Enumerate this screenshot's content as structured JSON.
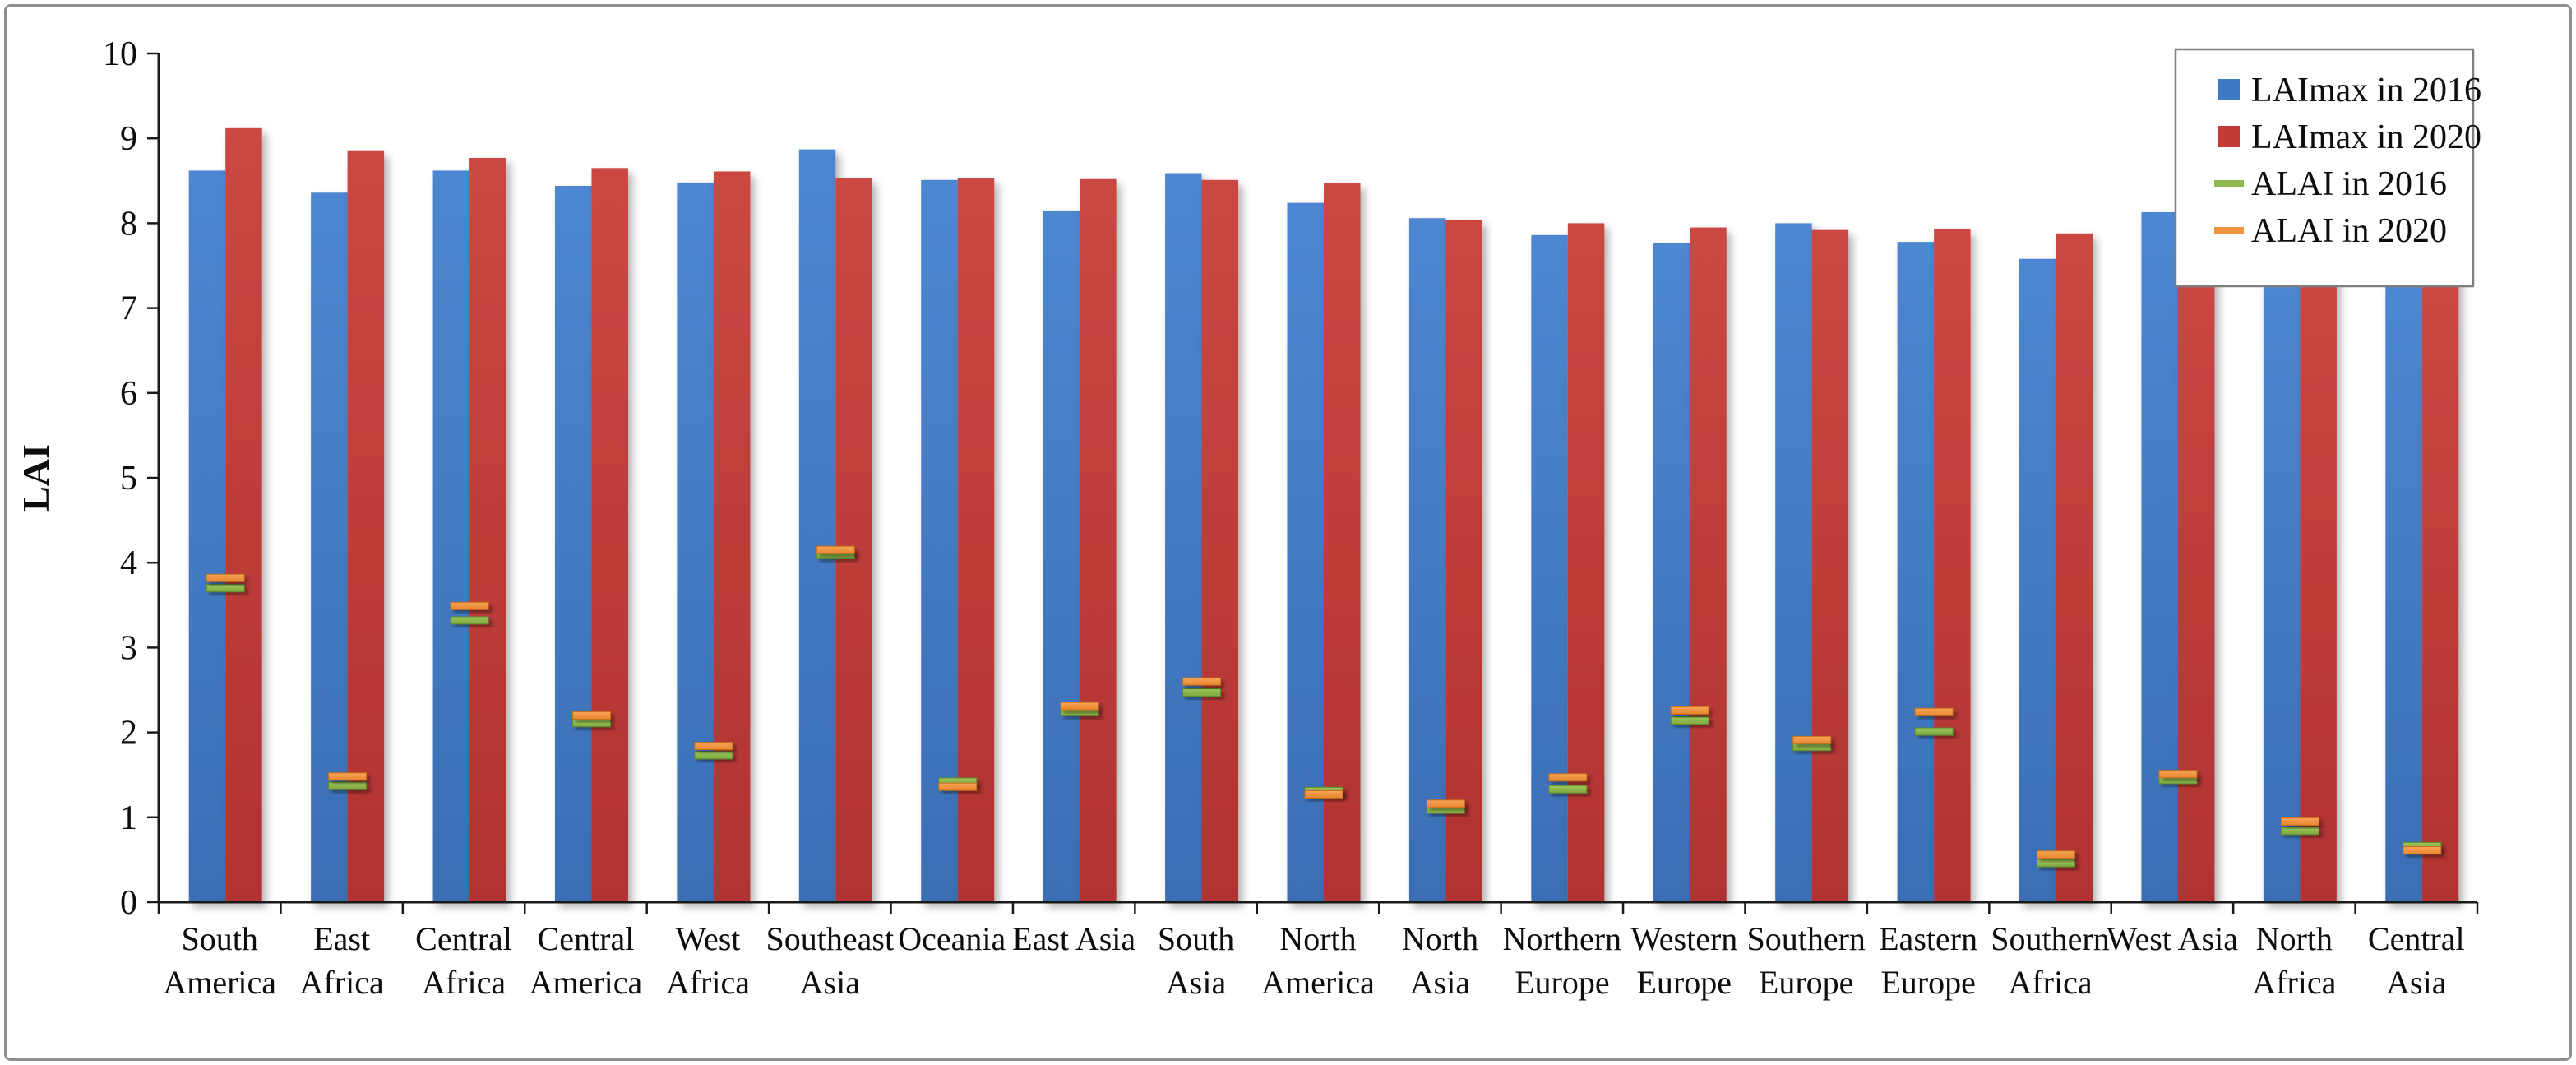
{
  "figure": {
    "kind": "excel-style clustered bar chart with dash markers",
    "background": "#ffffff",
    "frame_color": "#8f8f8f"
  },
  "chart_data": {
    "type": "bar",
    "title": "",
    "xlabel": "",
    "ylabel": "LAI",
    "ylim": [
      0,
      10
    ],
    "ytick_step": 1,
    "yticks": [
      0,
      1,
      2,
      3,
      4,
      5,
      6,
      7,
      8,
      9,
      10
    ],
    "grid": false,
    "legend_position": "top-right",
    "categories": [
      "South America",
      "East Africa",
      "Central Africa",
      "Central America",
      "West Africa",
      "Southeast Asia",
      "Oceania",
      "East Asia",
      "South Asia",
      "North America",
      "North Asia",
      "Northern Europe",
      "Western Europe",
      "Southern Europe",
      "Eastern Europe",
      "Southern Africa",
      "West Asia",
      "North Africa",
      "Central Asia"
    ],
    "category_lines": [
      [
        "South",
        "America"
      ],
      [
        "East",
        "Africa"
      ],
      [
        "Central",
        "Africa"
      ],
      [
        "Central",
        "America"
      ],
      [
        "West",
        "Africa"
      ],
      [
        "Southeast",
        "Asia"
      ],
      [
        "Oceania"
      ],
      [
        "East Asia"
      ],
      [
        "South",
        "Asia"
      ],
      [
        "North",
        "America"
      ],
      [
        "North",
        "Asia"
      ],
      [
        "Northern",
        "Europe"
      ],
      [
        "Western",
        "Europe"
      ],
      [
        "Southern",
        "Europe"
      ],
      [
        "Eastern",
        "Europe"
      ],
      [
        "Southern",
        "Africa"
      ],
      [
        "West Asia"
      ],
      [
        "North",
        "Africa"
      ],
      [
        "Central",
        "Asia"
      ]
    ],
    "series": [
      {
        "name": "LAImax in 2016",
        "type": "bar",
        "color": "#3E79C4",
        "values": [
          8.62,
          8.36,
          8.62,
          8.44,
          8.48,
          8.87,
          8.51,
          8.15,
          8.59,
          8.24,
          8.06,
          7.86,
          7.77,
          8.0,
          7.78,
          7.58,
          8.13,
          7.59,
          7.33
        ]
      },
      {
        "name": "LAImax in 2020",
        "type": "bar",
        "color": "#C23B38",
        "values": [
          9.12,
          8.85,
          8.77,
          8.65,
          8.61,
          8.53,
          8.53,
          8.52,
          8.51,
          8.47,
          8.04,
          8.0,
          7.95,
          7.92,
          7.93,
          7.88,
          7.76,
          7.63,
          7.38
        ]
      },
      {
        "name": "ALAI in 2016",
        "type": "dash",
        "color": "#8DB94E",
        "values": [
          3.7,
          1.37,
          3.32,
          2.11,
          1.73,
          4.09,
          1.42,
          2.24,
          2.47,
          1.31,
          1.09,
          1.33,
          2.14,
          1.83,
          2.01,
          0.46,
          1.44,
          0.84,
          0.66
        ]
      },
      {
        "name": "ALAI in 2020",
        "type": "dash",
        "color": "#F2953F",
        "values": [
          3.82,
          1.48,
          3.49,
          2.2,
          1.84,
          4.15,
          1.36,
          2.31,
          2.6,
          1.27,
          1.16,
          1.47,
          2.26,
          1.91,
          2.24,
          0.56,
          1.51,
          0.95,
          0.61
        ]
      }
    ],
    "colors": {
      "bar_2016_top": "#4E87D1",
      "bar_2016_bottom": "#3A6EB4",
      "bar_2020_top": "#CB4743",
      "bar_2020_bottom": "#B03330",
      "dash_2016_top": "#9CC65B",
      "dash_2016_bottom": "#7FA83F",
      "dash_2016_edge": "#5D8A2E",
      "dash_2020_top": "#F7A457",
      "dash_2020_bottom": "#E8862E",
      "dash_2020_edge": "#C46F1F",
      "axis": "#1a1a1a",
      "legend_border": "#7f7f7f"
    }
  }
}
